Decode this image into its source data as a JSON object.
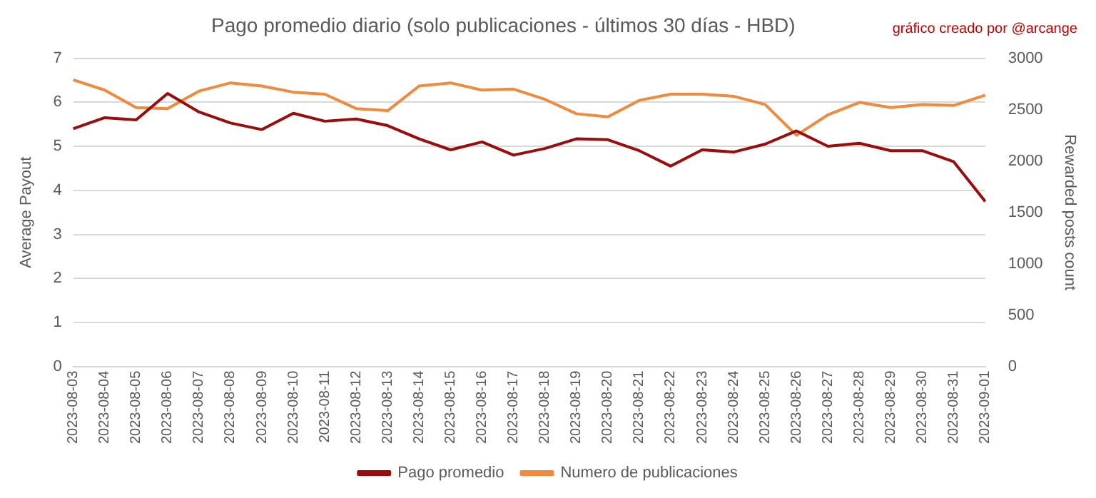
{
  "chart_data": {
    "type": "line",
    "title": "Pago promedio diario (solo publicaciones - últimos 30 días - HBD)",
    "annotations": [
      "gráfico creado por @arcange"
    ],
    "ylabel": "Average Payout",
    "y2label": "Rewarded posts count",
    "categories": [
      "2023-08-03",
      "2023-08-04",
      "2023-08-05",
      "2023-08-06",
      "2023-08-07",
      "2023-08-08",
      "2023-08-09",
      "2023-08-10",
      "2023-08-11",
      "2023-08-12",
      "2023-08-13",
      "2023-08-14",
      "2023-08-15",
      "2023-08-16",
      "2023-08-17",
      "2023-08-18",
      "2023-08-19",
      "2023-08-20",
      "2023-08-21",
      "2023-08-22",
      "2023-08-23",
      "2023-08-24",
      "2023-08-25",
      "2023-08-26",
      "2023-08-27",
      "2023-08-28",
      "2023-08-29",
      "2023-08-30",
      "2023-08-31",
      "2023-09-01"
    ],
    "series": [
      {
        "name": "Pago promedio",
        "color": "#9b0d0d",
        "values": [
          5.4,
          5.65,
          5.6,
          6.2,
          5.78,
          5.53,
          5.38,
          5.75,
          5.57,
          5.62,
          5.47,
          5.17,
          4.92,
          5.1,
          4.8,
          4.95,
          5.17,
          5.15,
          4.9,
          4.55,
          4.92,
          4.87,
          5.05,
          5.35,
          5.0,
          5.07,
          4.9,
          4.9,
          4.65,
          3.75
        ]
      },
      {
        "name": "Numero de publicaciones",
        "color": "#f08a3c",
        "axis": "y2",
        "values": [
          2790,
          2690,
          2520,
          2510,
          2680,
          2760,
          2730,
          2670,
          2650,
          2510,
          2490,
          2730,
          2760,
          2690,
          2700,
          2600,
          2460,
          2430,
          2590,
          2650,
          2650,
          2630,
          2550,
          2250,
          2450,
          2570,
          2520,
          2550,
          2540,
          2640
        ]
      }
    ],
    "ylim": [
      0,
      7
    ],
    "yticks": [
      0,
      1,
      2,
      3,
      4,
      5,
      6,
      7
    ],
    "y2lim": [
      0,
      3000
    ],
    "y2ticks": [
      0,
      500,
      1000,
      1500,
      2000,
      2500,
      3000
    ],
    "grid": "y",
    "legend": "bottom"
  }
}
